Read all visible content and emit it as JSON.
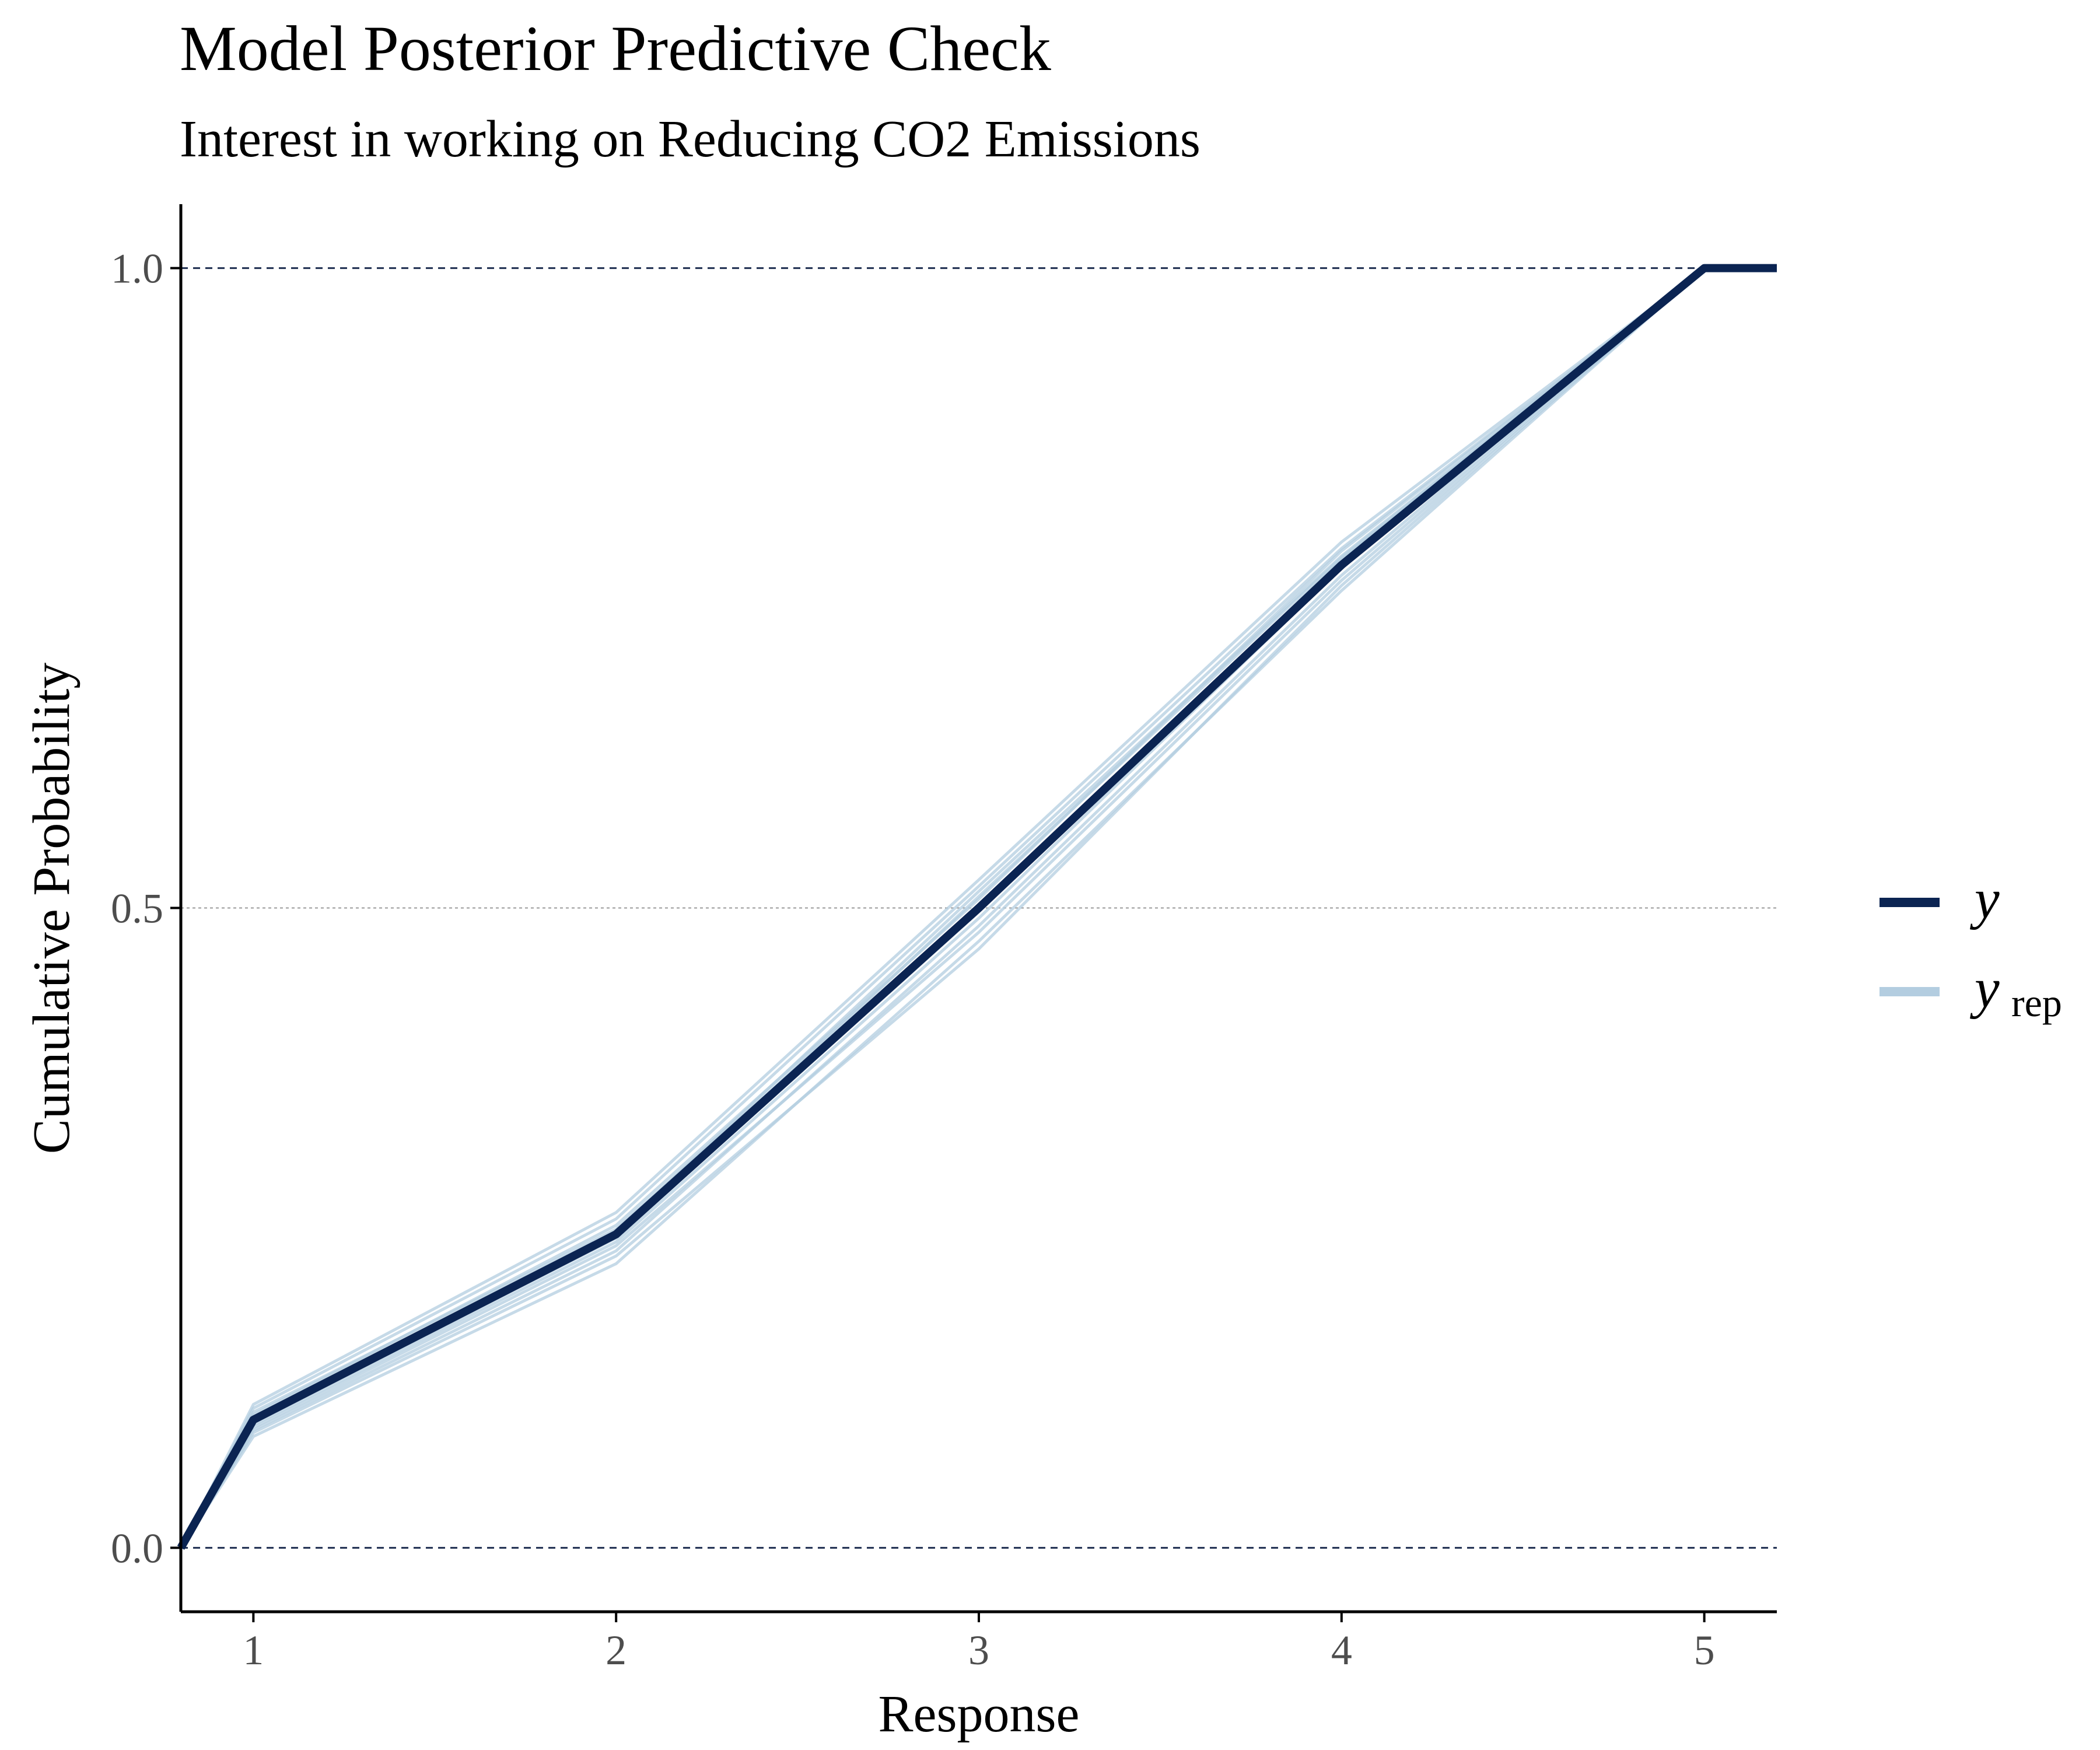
{
  "chart_data": {
    "type": "line",
    "title": "Model Posterior Predictive Check",
    "subtitle": "Interest in working on Reducing CO2 Emissions",
    "xlabel": "Response",
    "ylabel": "Cumulative Probability",
    "xlim": [
      0.8,
      5.2
    ],
    "ylim": [
      -0.05,
      1.05
    ],
    "xticks": [
      1,
      2,
      3,
      4,
      5
    ],
    "xtick_labels": [
      "1",
      "2",
      "3",
      "4",
      "5"
    ],
    "yticks": [
      0.0,
      0.5,
      1.0
    ],
    "ytick_labels": [
      "0.0",
      "0.5",
      "1.0"
    ],
    "reference_lines": [
      0.0,
      0.5,
      1.0
    ],
    "legend_position": "right",
    "colors": {
      "y": "#0b2452",
      "yrep": "#b3cde0"
    },
    "series": [
      {
        "name": "y",
        "role": "observed",
        "x": [
          0.8,
          1,
          2,
          3,
          4,
          5,
          5.2
        ],
        "values": [
          0.0,
          0.1,
          0.245,
          0.5,
          0.768,
          1.0,
          1.0
        ]
      }
    ],
    "yrep_draws": [
      [
        0.0,
        0.098,
        0.242,
        0.497,
        0.772,
        1.0,
        1.0
      ],
      [
        0.0,
        0.104,
        0.252,
        0.507,
        0.779,
        1.0,
        1.0
      ],
      [
        0.0,
        0.092,
        0.232,
        0.486,
        0.76,
        1.0,
        1.0
      ],
      [
        0.0,
        0.112,
        0.262,
        0.522,
        0.786,
        1.0,
        1.0
      ],
      [
        0.0,
        0.087,
        0.222,
        0.474,
        0.748,
        1.0,
        1.0
      ],
      [
        0.0,
        0.101,
        0.247,
        0.513,
        0.775,
        1.0,
        1.0
      ],
      [
        0.0,
        0.096,
        0.239,
        0.492,
        0.766,
        1.0,
        1.0
      ],
      [
        0.0,
        0.109,
        0.257,
        0.517,
        0.781,
        1.0,
        1.0
      ],
      [
        0.0,
        0.094,
        0.236,
        0.481,
        0.756,
        1.0,
        1.0
      ],
      [
        0.0,
        0.106,
        0.249,
        0.502,
        0.769,
        1.0,
        1.0
      ],
      [
        0.0,
        0.09,
        0.228,
        0.468,
        0.752,
        1.0,
        1.0
      ],
      [
        0.0,
        0.099,
        0.244,
        0.509,
        0.774,
        1.0,
        1.0
      ]
    ],
    "yrep_x": [
      0.8,
      1,
      2,
      3,
      4,
      5,
      5.2
    ],
    "legend": [
      {
        "key": "y",
        "label": "y",
        "subscript": ""
      },
      {
        "key": "yrep",
        "label": "y",
        "subscript": "rep"
      }
    ]
  }
}
